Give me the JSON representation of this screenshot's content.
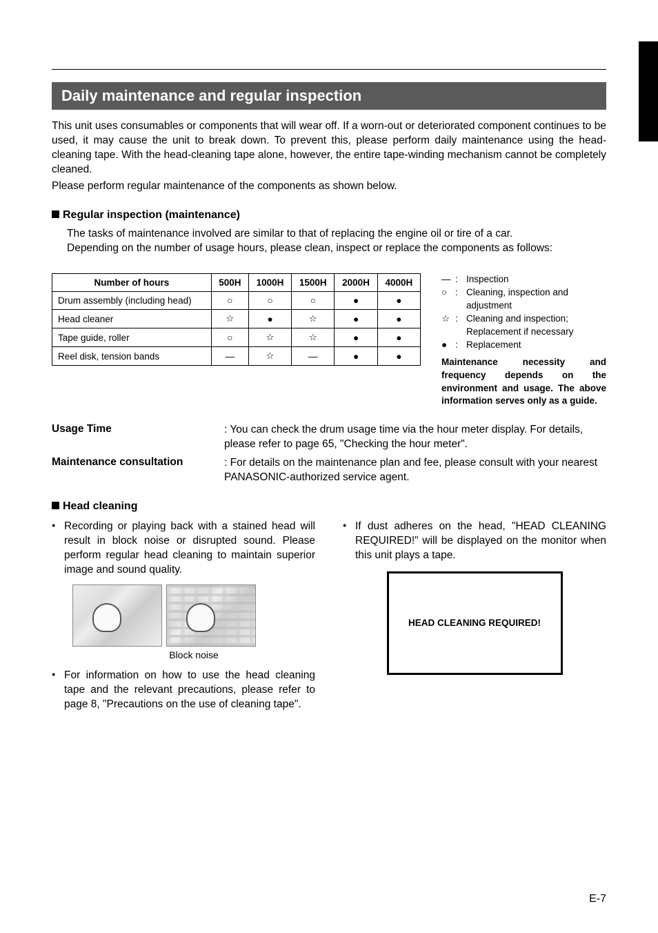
{
  "page": {
    "header": "Daily maintenance and regular inspection",
    "intro1": "This unit uses consumables or components that will wear off. If a worn-out or deteriorated component continues to be used, it may cause the unit to break down. To prevent this, please perform daily maintenance using the head-cleaning tape. With the head-cleaning tape alone, however, the entire tape-winding mechanism cannot be completely cleaned.",
    "intro2": "Please perform regular maintenance of the components as shown below.",
    "page_num": "E-7"
  },
  "regular": {
    "heading": "Regular inspection (maintenance)",
    "line1": "The tasks of maintenance involved are similar to that of replacing the engine oil or tire of a car.",
    "line2": "Depending on the number of usage hours, please clean, inspect or replace the components as follows:"
  },
  "table": {
    "head_label": "Number of hours",
    "columns": [
      "500H",
      "1000H",
      "1500H",
      "2000H",
      "4000H"
    ],
    "rows": [
      {
        "label": "Drum assembly (including head)",
        "cells": [
          "○",
          "○",
          "○",
          "●",
          "●"
        ]
      },
      {
        "label": "Head cleaner",
        "cells": [
          "☆",
          "●",
          "☆",
          "●",
          "●"
        ]
      },
      {
        "label": "Tape guide, roller",
        "cells": [
          "○",
          "☆",
          "☆",
          "●",
          "●"
        ]
      },
      {
        "label": "Reel disk, tension bands",
        "cells": [
          "—",
          "☆",
          "—",
          "●",
          "●"
        ]
      }
    ]
  },
  "legend": {
    "items": [
      {
        "sym": "—",
        "text": "Inspection"
      },
      {
        "sym": "○",
        "text": "Cleaning, inspection and adjustment"
      },
      {
        "sym": "☆",
        "text": "Cleaning and inspection; Replacement if necessary"
      },
      {
        "sym": "●",
        "text": "Replacement"
      }
    ],
    "note": "Maintenance necessity and frequency depends on the environment and usage. The above information serves only as a guide."
  },
  "defs": {
    "usage_time_label": "Usage Time",
    "usage_time_text": ": You can check the drum usage time via the hour meter display. For details, please refer to page 65, \"Checking the hour meter\".",
    "maint_label": "Maintenance consultation",
    "maint_text": ": For details on the maintenance plan and fee, please consult with your nearest PANASONIC-authorized service agent."
  },
  "head_cleaning": {
    "heading": "Head cleaning",
    "left_b1": "Recording or playing back with a stained head will result in block noise or disrupted sound. Please perform regular head cleaning to maintain superior image and sound quality.",
    "fig_caption": "Block noise",
    "left_b2": "For information on how to use the head cleaning tape and the relevant precautions, please refer to page 8, \"Precautions on the use of cleaning tape\".",
    "right_b1": "If dust adheres on the head, \"HEAD CLEANING REQUIRED!\" will be displayed on the monitor when this unit plays a tape.",
    "monitor_text": "HEAD CLEANING REQUIRED!"
  }
}
